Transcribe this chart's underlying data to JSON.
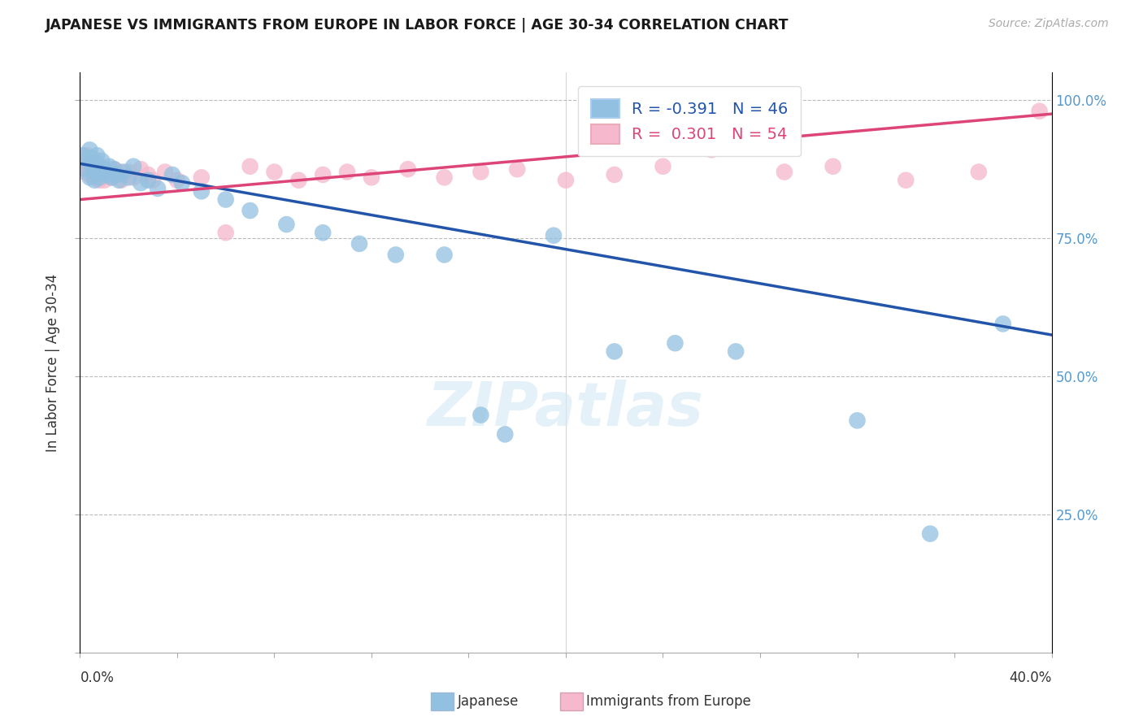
{
  "title": "JAPANESE VS IMMIGRANTS FROM EUROPE IN LABOR FORCE | AGE 30-34 CORRELATION CHART",
  "source_text": "Source: ZipAtlas.com",
  "ylabel": "In Labor Force | Age 30-34",
  "xmin": 0.0,
  "xmax": 0.4,
  "ymin": 0.0,
  "ymax": 1.05,
  "legend_blue_label": "R = -0.391   N = 46",
  "legend_pink_label": "R =  0.301   N = 54",
  "watermark": "ZIPatlas",
  "blue_color": "#92C0E0",
  "pink_color": "#F5B8CC",
  "blue_line_color": "#2255AA",
  "pink_line_color": "#DD4477",
  "jap_x": [
    0.001,
    0.002,
    0.003,
    0.004,
    0.004,
    0.005,
    0.005,
    0.006,
    0.006,
    0.007,
    0.007,
    0.008,
    0.008,
    0.009,
    0.01,
    0.011,
    0.012,
    0.013,
    0.014,
    0.015,
    0.016,
    0.018,
    0.02,
    0.022,
    0.025,
    0.028,
    0.032,
    0.038,
    0.042,
    0.05,
    0.06,
    0.07,
    0.085,
    0.1,
    0.115,
    0.13,
    0.15,
    0.165,
    0.175,
    0.195,
    0.22,
    0.245,
    0.27,
    0.32,
    0.35,
    0.38
  ],
  "jap_y": [
    0.9,
    0.875,
    0.895,
    0.86,
    0.91,
    0.88,
    0.895,
    0.87,
    0.855,
    0.9,
    0.885,
    0.87,
    0.86,
    0.89,
    0.875,
    0.865,
    0.88,
    0.86,
    0.875,
    0.865,
    0.855,
    0.87,
    0.86,
    0.88,
    0.85,
    0.855,
    0.84,
    0.865,
    0.85,
    0.835,
    0.82,
    0.8,
    0.775,
    0.76,
    0.74,
    0.72,
    0.72,
    0.43,
    0.395,
    0.755,
    0.545,
    0.56,
    0.545,
    0.42,
    0.215,
    0.595
  ],
  "eur_x": [
    0.001,
    0.002,
    0.003,
    0.003,
    0.004,
    0.004,
    0.005,
    0.005,
    0.006,
    0.006,
    0.007,
    0.007,
    0.008,
    0.008,
    0.009,
    0.009,
    0.01,
    0.01,
    0.011,
    0.012,
    0.013,
    0.014,
    0.015,
    0.016,
    0.017,
    0.018,
    0.02,
    0.022,
    0.025,
    0.028,
    0.03,
    0.035,
    0.04,
    0.05,
    0.06,
    0.07,
    0.08,
    0.09,
    0.1,
    0.11,
    0.12,
    0.135,
    0.15,
    0.165,
    0.18,
    0.2,
    0.22,
    0.24,
    0.26,
    0.29,
    0.31,
    0.34,
    0.37,
    0.395
  ],
  "eur_y": [
    0.88,
    0.87,
    0.9,
    0.875,
    0.88,
    0.865,
    0.885,
    0.87,
    0.875,
    0.86,
    0.88,
    0.865,
    0.87,
    0.855,
    0.875,
    0.86,
    0.87,
    0.855,
    0.865,
    0.87,
    0.86,
    0.875,
    0.865,
    0.87,
    0.855,
    0.865,
    0.87,
    0.86,
    0.875,
    0.865,
    0.855,
    0.87,
    0.855,
    0.86,
    0.76,
    0.88,
    0.87,
    0.855,
    0.865,
    0.87,
    0.86,
    0.875,
    0.86,
    0.87,
    0.875,
    0.855,
    0.865,
    0.88,
    0.91,
    0.87,
    0.88,
    0.855,
    0.87,
    0.98
  ],
  "jap_trend_x": [
    0.0,
    0.4
  ],
  "jap_trend_y": [
    0.885,
    0.575
  ],
  "eur_trend_x": [
    0.0,
    0.4
  ],
  "eur_trend_y": [
    0.82,
    0.975
  ]
}
